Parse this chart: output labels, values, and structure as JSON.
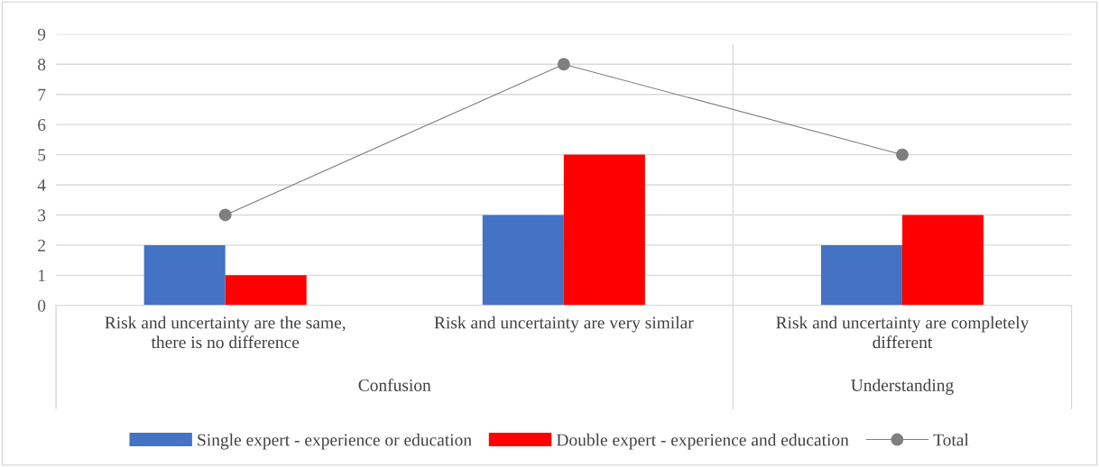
{
  "chart_data": {
    "type": "bar",
    "categories": [
      "Risk and uncertainty are the same,\nthere is no difference",
      "Risk and uncertainty are very similar",
      "Risk and uncertainty are completely\ndifferent"
    ],
    "series": [
      {
        "name": "Single expert - experience or education",
        "color": "#4472c4",
        "values": [
          2,
          3,
          2
        ]
      },
      {
        "name": "Double expert - experience and education",
        "color": "#ff0000",
        "values": [
          1,
          5,
          3
        ]
      },
      {
        "name": "Total",
        "color": "#7f7f7f",
        "type": "line",
        "marker": "circle",
        "values": [
          3,
          8,
          5
        ]
      }
    ],
    "ylim": [
      0,
      9
    ],
    "yticks": [
      0,
      1,
      2,
      3,
      4,
      5,
      6,
      7,
      8,
      9
    ],
    "grid": "y",
    "legend": "bottom",
    "annotations": [
      "Confusion",
      "Understanding"
    ]
  }
}
